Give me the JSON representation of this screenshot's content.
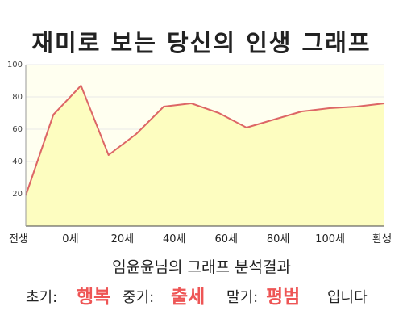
{
  "title": "재미로 보는 당신의 인생 그래프",
  "caption": "임윤윤님의 그래프 분석결과",
  "summary": {
    "early_label": "초기:",
    "early_value": "행복",
    "middle_label": "중기:",
    "middle_value": "출세",
    "late_label": "말기:",
    "late_value": "평범",
    "suffix": "입니다",
    "highlight_color": "#ee5555"
  },
  "chart_data": {
    "type": "area",
    "title": "재미로 보는 당신의 인생 그래프",
    "xlabel": "",
    "ylabel": "",
    "x_tick_labels": [
      "전생",
      "0세",
      "20세",
      "40세",
      "60세",
      "80세",
      "100세",
      "환생"
    ],
    "x": [
      0,
      1,
      2,
      3,
      4,
      5,
      6,
      7,
      8,
      9,
      10,
      11,
      12,
      13
    ],
    "values": [
      19,
      69,
      87,
      44,
      57,
      74,
      76,
      70,
      61,
      66,
      71,
      73,
      74,
      76
    ],
    "ylim": [
      0,
      100
    ],
    "y_ticks": [
      20,
      40,
      60,
      80,
      100
    ],
    "grid": true,
    "line_color": "#dd6666",
    "fill_color": "#fdfdc0",
    "plot_background": "#fffff0",
    "grid_color": "#e8e8e8"
  }
}
